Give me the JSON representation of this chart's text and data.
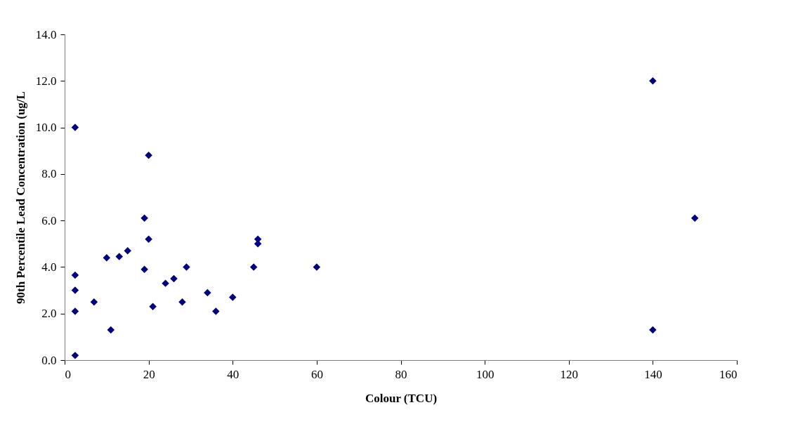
{
  "chart_data": {
    "type": "scatter",
    "xlabel": "Colour (TCU)",
    "ylabel": "90th Percentile Lead Concentration (ug/L",
    "x": [
      2.5,
      2.5,
      2.5,
      2.5,
      2.5,
      7,
      10,
      11,
      13,
      15,
      19,
      19,
      20,
      20,
      21,
      24,
      26,
      28,
      29,
      34,
      36,
      40,
      45,
      46,
      46,
      60,
      140,
      140,
      150
    ],
    "series": [
      {
        "color": "#000080",
        "values": [
          10,
          3.65,
          3.0,
          2.1,
          0.2,
          2.5,
          4.4,
          1.3,
          4.45,
          4.7,
          6.1,
          3.9,
          8.8,
          5.2,
          2.3,
          3.3,
          3.5,
          2.5,
          4.0,
          2.9,
          2.1,
          2.7,
          4.0,
          5.2,
          5.0,
          4.0,
          12,
          1.3,
          6.1
        ]
      }
    ],
    "marker": "diamond",
    "grid": false,
    "xlim": [
      0,
      160
    ],
    "xticks": [
      0,
      20,
      40,
      60,
      80,
      100,
      120,
      140,
      160
    ],
    "ylim": [
      0,
      14
    ],
    "yticks": [
      {
        "value": 0,
        "label": "0.0"
      },
      {
        "value": 2,
        "label": "2.0"
      },
      {
        "value": 4,
        "label": "4.0"
      },
      {
        "value": 6,
        "label": "6.0"
      },
      {
        "value": 8,
        "label": "8.0"
      },
      {
        "value": 10,
        "label": "10.0"
      },
      {
        "value": 12,
        "label": "12.0"
      },
      {
        "value": 14,
        "label": "14.0"
      }
    ]
  }
}
